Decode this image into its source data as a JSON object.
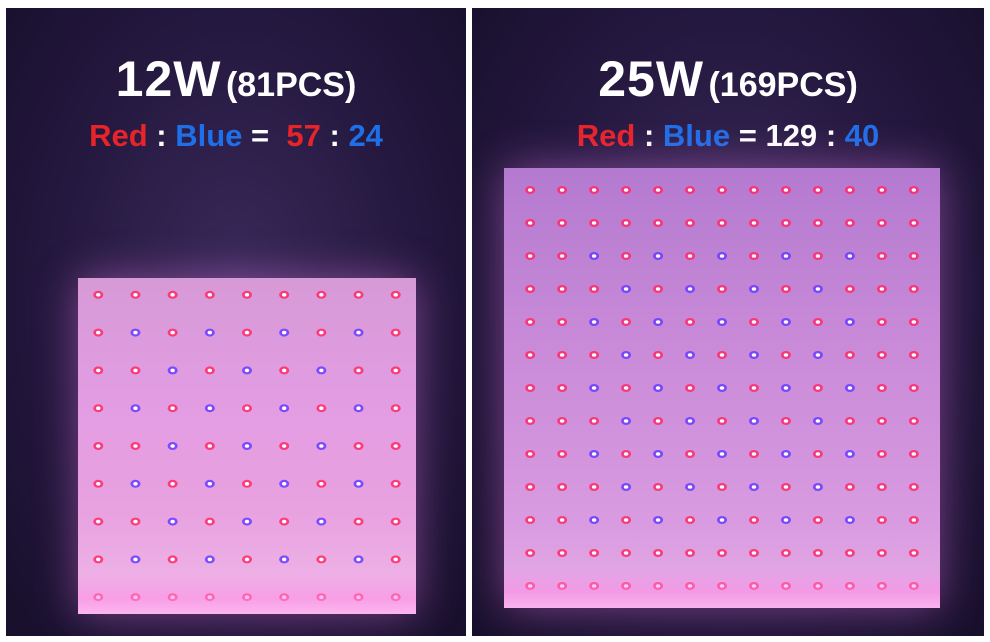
{
  "panels": [
    {
      "watt": "12W",
      "pcs": "(81PCS)",
      "ratio": {
        "red_label": "Red",
        "sep1": ":",
        "blue_label": "Blue",
        "eq": "=",
        "red_count": "57",
        "sep2": ":",
        "blue_count": "24"
      },
      "grid": {
        "rows": 9,
        "cols": 9
      },
      "colors": {
        "red": "#e8232a",
        "blue": "#1f6fe8"
      }
    },
    {
      "watt": "25W",
      "pcs": "(169PCS)",
      "ratio": {
        "red_label": "Red",
        "sep1": ":",
        "blue_label": "Blue",
        "eq": "=",
        "red_count": "129",
        "sep2": ":",
        "blue_count": "40"
      },
      "grid": {
        "rows": 13,
        "cols": 13
      },
      "colors": {
        "red": "#e8232a",
        "blue": "#1f6fe8"
      }
    }
  ]
}
